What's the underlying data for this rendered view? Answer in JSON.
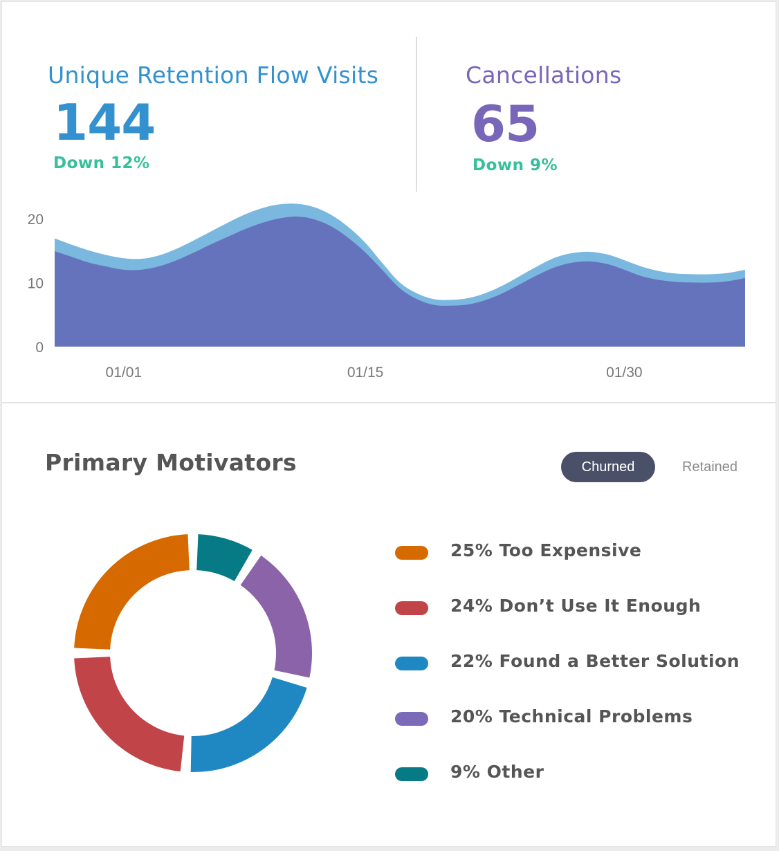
{
  "stats": {
    "visits": {
      "title": "Unique Retention Flow Visits",
      "value": "144",
      "delta": "Down 12%",
      "color": "#3391cf"
    },
    "cancellations": {
      "title": "Cancellations",
      "value": "65",
      "delta": "Down 9%",
      "color": "#7866b8"
    },
    "delta_color": "#37be9c"
  },
  "chart_data": {
    "type": "area",
    "x_tick_labels": [
      "01/01",
      "01/15",
      "01/30"
    ],
    "y_ticks": [
      0,
      10,
      20
    ],
    "ylim": [
      0,
      23
    ],
    "x": [
      "12/28",
      "12/29",
      "12/30",
      "12/31",
      "01/01",
      "01/02",
      "01/03",
      "01/04",
      "01/05",
      "01/06",
      "01/07",
      "01/08",
      "01/09",
      "01/10",
      "01/11",
      "01/12",
      "01/13",
      "01/14",
      "01/15",
      "01/16",
      "01/17",
      "01/18",
      "01/19",
      "01/20",
      "01/21",
      "01/22",
      "01/23",
      "01/24",
      "01/25",
      "01/26",
      "01/27",
      "01/28",
      "01/29",
      "01/30",
      "01/31",
      "02/01",
      "02/02",
      "02/03",
      "02/04",
      "02/05",
      "02/06"
    ],
    "series": [
      {
        "color": "#7ab8e0",
        "values": [
          16.9,
          15.9,
          15.0,
          14.3,
          13.8,
          13.7,
          14.2,
          15.2,
          16.5,
          17.9,
          19.3,
          20.6,
          21.6,
          22.2,
          22.3,
          21.8,
          20.6,
          18.7,
          16.2,
          13.0,
          10.0,
          8.3,
          7.4,
          7.3,
          7.6,
          8.4,
          9.6,
          11.1,
          12.6,
          13.9,
          14.6,
          14.8,
          14.4,
          13.5,
          12.5,
          11.8,
          11.4,
          11.3,
          11.3,
          11.5,
          12.0
        ]
      },
      {
        "color": "#6573bc",
        "values": [
          14.9,
          14.0,
          13.1,
          12.5,
          12.0,
          12.0,
          12.5,
          13.4,
          14.6,
          15.9,
          17.1,
          18.3,
          19.3,
          20.0,
          20.3,
          19.9,
          18.8,
          17.0,
          14.7,
          11.9,
          9.1,
          7.4,
          6.5,
          6.4,
          6.6,
          7.3,
          8.4,
          9.8,
          11.2,
          12.4,
          13.1,
          13.3,
          12.9,
          12.0,
          11.0,
          10.4,
          10.1,
          10.0,
          10.0,
          10.2,
          10.7
        ]
      }
    ]
  },
  "motivators": {
    "title": "Primary Motivators",
    "toggles": {
      "active": "Churned",
      "inactive": "Retained"
    },
    "items": [
      {
        "label": "25% Too Expensive",
        "percent": 25,
        "color": "#d66a00"
      },
      {
        "label": "24% Don’t Use It Enough",
        "percent": 24,
        "color": "#c04448"
      },
      {
        "label": "22% Found a Better Solution",
        "percent": 22,
        "color": "#1f88c2"
      },
      {
        "label": "20% Technical Problems",
        "percent": 20,
        "color": "#7a6ab8"
      },
      {
        "label": "9% Other",
        "percent": 9,
        "color": "#067a85"
      }
    ],
    "donut_order": [
      4,
      3,
      2,
      1,
      0
    ],
    "donut_colors": [
      "#067a85",
      "#8b63a8",
      "#1f88c2",
      "#c04448",
      "#d66a00"
    ]
  }
}
